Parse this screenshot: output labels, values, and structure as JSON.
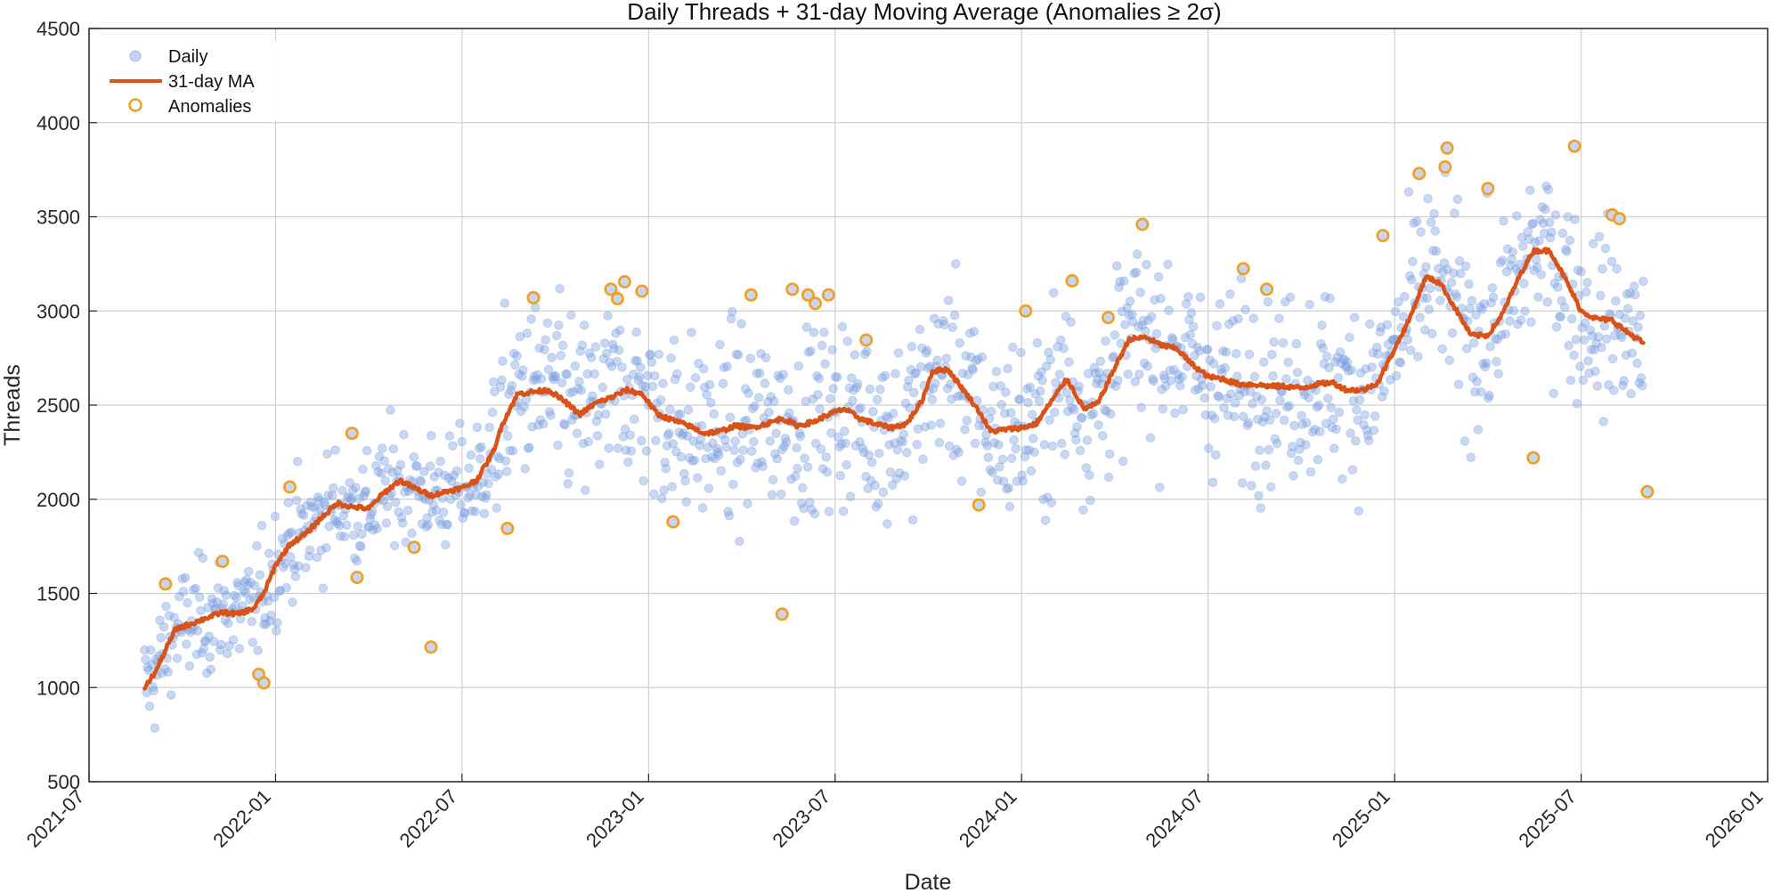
{
  "chart_data": {
    "type": "scatter",
    "title": "Daily Threads + 31-day Moving Average (Anomalies ≥ 2σ)",
    "xlabel": "Date",
    "ylabel": "Threads",
    "xlim": [
      "2021-07",
      "2026-01"
    ],
    "ylim": [
      500,
      4500
    ],
    "x_ticks": [
      "2021-07",
      "2022-01",
      "2022-07",
      "2023-01",
      "2023-07",
      "2024-01",
      "2024-07",
      "2025-01",
      "2025-07",
      "2026-01"
    ],
    "y_ticks": [
      500,
      1000,
      1500,
      2000,
      2500,
      3000,
      3500,
      4000,
      4500
    ],
    "grid": true,
    "legend": {
      "placement": "top-left",
      "entries": [
        "Daily",
        "31-day MA",
        "Anomalies"
      ]
    },
    "colors": {
      "daily": "#7b9fe0",
      "ma": "#d95319",
      "anomaly": "#f0a020",
      "anomaly_fill": "#c9d5f0"
    },
    "daily_points": "synthetic scatter around the moving average (approx. 1400 daily observations)",
    "moving_average": {
      "name": "31-day MA",
      "x": [
        "2021-08-25",
        "2021-09-05",
        "2021-09-15",
        "2021-09-25",
        "2021-10-10",
        "2021-10-25",
        "2021-11-10",
        "2021-11-25",
        "2021-12-10",
        "2021-12-20",
        "2022-01-01",
        "2022-01-15",
        "2022-02-01",
        "2022-02-15",
        "2022-03-01",
        "2022-03-15",
        "2022-04-01",
        "2022-04-15",
        "2022-05-01",
        "2022-05-15",
        "2022-06-01",
        "2022-06-15",
        "2022-07-01",
        "2022-07-15",
        "2022-08-01",
        "2022-08-10",
        "2022-08-25",
        "2022-09-10",
        "2022-09-25",
        "2022-10-10",
        "2022-10-25",
        "2022-11-10",
        "2022-11-25",
        "2022-12-10",
        "2022-12-25",
        "2023-01-10",
        "2023-01-25",
        "2023-02-10",
        "2023-02-25",
        "2023-03-10",
        "2023-03-25",
        "2023-04-10",
        "2023-04-25",
        "2023-05-10",
        "2023-05-25",
        "2023-06-10",
        "2023-06-25",
        "2023-07-10",
        "2023-07-25",
        "2023-08-10",
        "2023-08-25",
        "2023-09-10",
        "2023-09-25",
        "2023-10-05",
        "2023-10-20",
        "2023-11-05",
        "2023-11-20",
        "2023-12-01",
        "2023-12-15",
        "2024-01-01",
        "2024-01-15",
        "2024-02-01",
        "2024-02-15",
        "2024-03-01",
        "2024-03-15",
        "2024-04-01",
        "2024-04-15",
        "2024-05-01",
        "2024-05-15",
        "2024-06-01",
        "2024-06-15",
        "2024-07-01",
        "2024-07-15",
        "2024-08-01",
        "2024-08-15",
        "2024-09-01",
        "2024-09-15",
        "2024-10-01",
        "2024-10-15",
        "2024-11-01",
        "2024-11-15",
        "2024-12-01",
        "2024-12-15",
        "2025-01-01",
        "2025-01-15",
        "2025-02-01",
        "2025-02-15",
        "2025-03-01",
        "2025-03-15",
        "2025-04-01",
        "2025-04-15",
        "2025-05-01",
        "2025-05-15",
        "2025-06-01",
        "2025-06-15",
        "2025-07-01",
        "2025-07-15",
        "2025-08-01",
        "2025-08-15",
        "2025-09-01"
      ],
      "values": [
        1000,
        1080,
        1200,
        1310,
        1340,
        1370,
        1400,
        1390,
        1420,
        1500,
        1650,
        1760,
        1820,
        1900,
        1980,
        1960,
        1950,
        2030,
        2100,
        2060,
        2020,
        2040,
        2060,
        2100,
        2250,
        2400,
        2560,
        2570,
        2580,
        2520,
        2450,
        2510,
        2540,
        2580,
        2560,
        2450,
        2420,
        2390,
        2350,
        2360,
        2390,
        2380,
        2400,
        2430,
        2390,
        2410,
        2450,
        2480,
        2430,
        2400,
        2380,
        2400,
        2520,
        2680,
        2690,
        2580,
        2470,
        2360,
        2370,
        2380,
        2400,
        2530,
        2640,
        2480,
        2510,
        2700,
        2850,
        2860,
        2820,
        2800,
        2720,
        2650,
        2640,
        2610,
        2610,
        2600,
        2600,
        2590,
        2610,
        2620,
        2580,
        2580,
        2620,
        2800,
        2950,
        3180,
        3150,
        3000,
        2870,
        2870,
        2980,
        3180,
        3320,
        3320,
        3180,
        3000,
        2960,
        2950,
        2890,
        2830
      ]
    },
    "anomalies": [
      {
        "x": "2021-09-15",
        "y": 1550
      },
      {
        "x": "2021-11-10",
        "y": 1670
      },
      {
        "x": "2021-12-15",
        "y": 1070
      },
      {
        "x": "2021-12-20",
        "y": 1025
      },
      {
        "x": "2022-01-15",
        "y": 2065
      },
      {
        "x": "2022-03-15",
        "y": 2350
      },
      {
        "x": "2022-03-20",
        "y": 1585
      },
      {
        "x": "2022-05-15",
        "y": 1745
      },
      {
        "x": "2022-06-01",
        "y": 1215
      },
      {
        "x": "2022-08-15",
        "y": 1845
      },
      {
        "x": "2022-09-10",
        "y": 3070
      },
      {
        "x": "2022-11-25",
        "y": 3115
      },
      {
        "x": "2022-12-01",
        "y": 3065
      },
      {
        "x": "2022-12-08",
        "y": 3155
      },
      {
        "x": "2022-12-25",
        "y": 3105
      },
      {
        "x": "2023-01-25",
        "y": 1880
      },
      {
        "x": "2023-04-10",
        "y": 3085
      },
      {
        "x": "2023-05-10",
        "y": 1390
      },
      {
        "x": "2023-05-20",
        "y": 3115
      },
      {
        "x": "2023-06-05",
        "y": 3085
      },
      {
        "x": "2023-06-12",
        "y": 3040
      },
      {
        "x": "2023-06-25",
        "y": 3085
      },
      {
        "x": "2023-08-01",
        "y": 2845
      },
      {
        "x": "2023-11-20",
        "y": 1970
      },
      {
        "x": "2024-01-05",
        "y": 3000
      },
      {
        "x": "2024-02-20",
        "y": 3160
      },
      {
        "x": "2024-03-25",
        "y": 2965
      },
      {
        "x": "2024-04-28",
        "y": 3460
      },
      {
        "x": "2024-08-05",
        "y": 3225
      },
      {
        "x": "2024-08-28",
        "y": 3115
      },
      {
        "x": "2024-12-20",
        "y": 3400
      },
      {
        "x": "2025-01-25",
        "y": 3730
      },
      {
        "x": "2025-02-20",
        "y": 3765
      },
      {
        "x": "2025-02-22",
        "y": 3865
      },
      {
        "x": "2025-04-01",
        "y": 3650
      },
      {
        "x": "2025-05-15",
        "y": 2220
      },
      {
        "x": "2025-06-25",
        "y": 3875
      },
      {
        "x": "2025-08-01",
        "y": 3510
      },
      {
        "x": "2025-08-08",
        "y": 3490
      },
      {
        "x": "2025-09-05",
        "y": 2040
      }
    ]
  }
}
